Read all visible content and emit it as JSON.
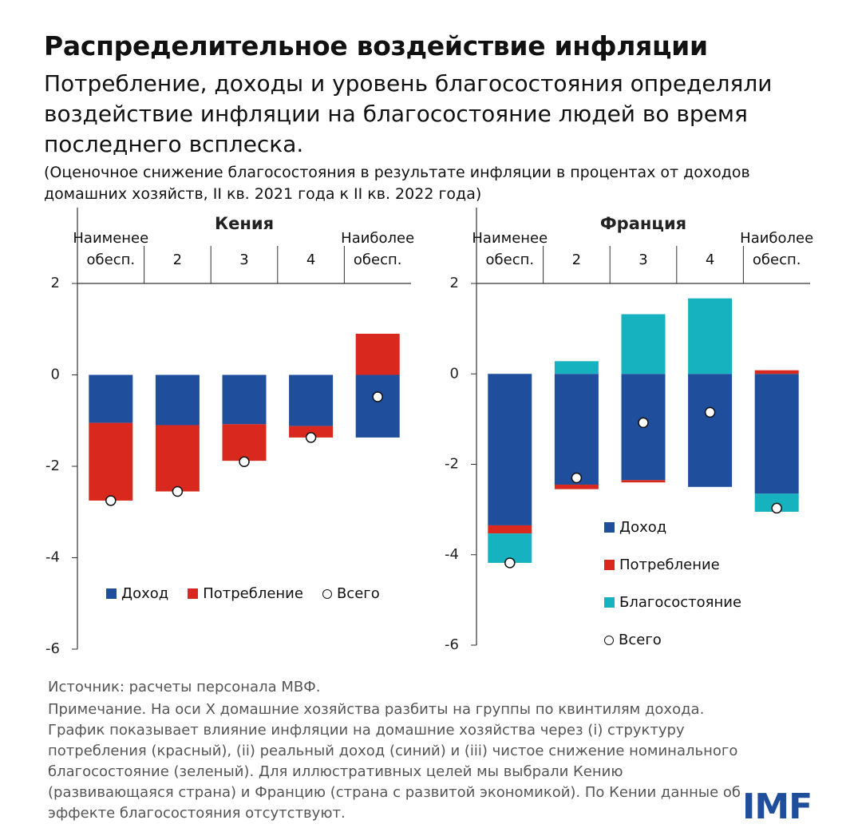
{
  "title": "Распределительное воздействие инфляции",
  "subtitle": "Потребление, доходы и уровень благосостояния определяли воздействие инфляции на благосостояние людей во время последнего всплеска.",
  "unit_note": "(Оценочное снижение благосостояния в результате инфляции в процентах от доходов домашних хозяйств, II кв. 2021 года к II кв. 2022 года)",
  "source": "Источник: расчеты персонала МВФ.",
  "note": "Примечание. На оси X домашние хозяйства разбиты на группы по квинтилям дохода. График показывает влияние инфляции на домашние хозяйства через (i) структуру потребления (красный), (ii) реальный доход (синий) и (iii) чистое снижение номинального благосостояние (зеленый). Для иллюстративных целей мы выбрали Кению (развивающаяся страна) и Францию (страна с развитой экономикой). По Кении данные об эффекте благосостояния отсутствуют.",
  "logo": "IMF",
  "chart_data": [
    {
      "type": "bar",
      "stacked": true,
      "title": "Кения",
      "categories": [
        "Наименее обесп.",
        "2",
        "3",
        "4",
        "Наиболее обесп."
      ],
      "series": [
        {
          "name": "Доход",
          "color": "#1f4e9c",
          "values": [
            -1.05,
            -1.1,
            -1.08,
            -1.12,
            -1.37
          ]
        },
        {
          "name": "Потребление",
          "color": "#d9281e",
          "values": [
            -1.7,
            -1.45,
            -0.8,
            -0.25,
            0.9
          ]
        },
        {
          "name": "Всего",
          "type": "marker",
          "color": "#ffffff",
          "values": [
            -2.75,
            -2.55,
            -1.9,
            -1.37,
            -0.48
          ]
        }
      ],
      "ylim": [
        -6,
        2
      ],
      "yticks": [
        -6,
        -4,
        -2,
        0,
        2
      ],
      "legend": "bottom"
    },
    {
      "type": "bar",
      "stacked": true,
      "title": "Франция",
      "categories": [
        "Наименее обесп.",
        "2",
        "3",
        "4",
        "Наиболее обесп."
      ],
      "series": [
        {
          "name": "Доход",
          "color": "#1f4e9c",
          "values": [
            -3.35,
            -2.45,
            -2.35,
            -2.5,
            -2.65
          ]
        },
        {
          "name": "Потребление",
          "color": "#d9281e",
          "values": [
            -0.18,
            -0.1,
            -0.05,
            0,
            0.08
          ]
        },
        {
          "name": "Благосостояние",
          "color": "#16b2bf",
          "values": [
            -0.65,
            0.28,
            1.32,
            1.67,
            -0.4
          ]
        },
        {
          "name": "Всего",
          "type": "marker",
          "color": "#ffffff",
          "values": [
            -4.18,
            -2.3,
            -1.08,
            -0.85,
            -2.97
          ]
        }
      ],
      "ylim": [
        -6,
        2
      ],
      "yticks": [
        -6,
        -4,
        -2,
        0,
        2
      ],
      "legend": "lower right"
    }
  ]
}
